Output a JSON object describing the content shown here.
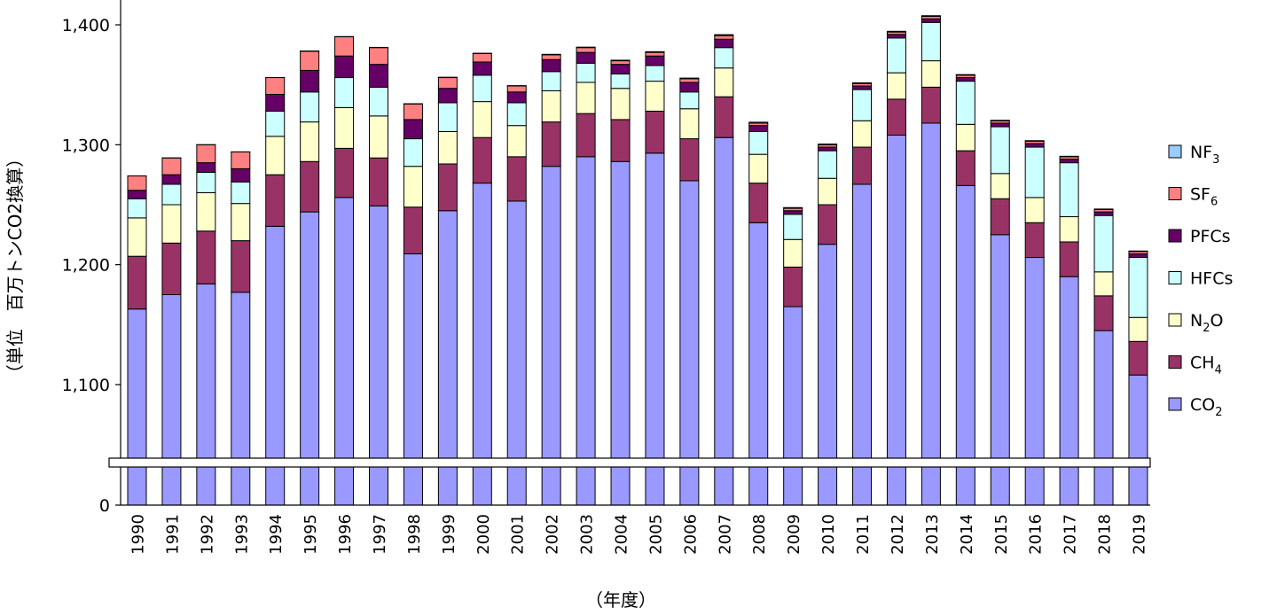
{
  "chart_data": {
    "type": "bar",
    "stacked": true,
    "broken_y_axis": true,
    "ylabel": "（単位　百万トンCO2換算）",
    "xlabel": "（年度）",
    "y_ticks": [
      "0",
      "1,100",
      "1,200",
      "1,300",
      "1,400"
    ],
    "ylim_upper": [
      1040,
      1400
    ],
    "grid": false,
    "legend_position": "right",
    "categories": [
      "1990",
      "1991",
      "1992",
      "1993",
      "1994",
      "1995",
      "1996",
      "1997",
      "1998",
      "1999",
      "2000",
      "2001",
      "2002",
      "2003",
      "2004",
      "2005",
      "2006",
      "2007",
      "2008",
      "2009",
      "2010",
      "2011",
      "2012",
      "2013",
      "2014",
      "2015",
      "2016",
      "2017",
      "2018",
      "2019"
    ],
    "series": [
      {
        "name": "CO2",
        "label_main": "CO",
        "label_sub": "2",
        "color": "#9999ff",
        "values": [
          1163,
          1175,
          1184,
          1177,
          1232,
          1244,
          1256,
          1249,
          1209,
          1245,
          1268,
          1253,
          1282,
          1290,
          1286,
          1293,
          1270,
          1306,
          1235,
          1165,
          1217,
          1267,
          1308,
          1318,
          1266,
          1225,
          1206,
          1190,
          1145,
          1108
        ]
      },
      {
        "name": "CH4",
        "label_main": "CH",
        "label_sub": "4",
        "color": "#993366",
        "values": [
          44,
          43,
          44,
          43,
          43,
          42,
          41,
          40,
          39,
          39,
          38,
          37,
          37,
          36,
          35,
          35,
          35,
          34,
          33,
          33,
          33,
          31,
          30,
          30,
          29,
          30,
          29,
          29,
          29,
          28
        ]
      },
      {
        "name": "N2O",
        "label_main": "N",
        "label_sub": "2",
        "label_tail": "O",
        "color": "#ffffcc",
        "values": [
          32,
          32,
          32,
          31,
          32,
          33,
          34,
          35,
          34,
          27,
          30,
          26,
          26,
          26,
          26,
          25,
          25,
          24,
          24,
          23,
          22,
          22,
          22,
          22,
          22,
          21,
          21,
          21,
          20,
          20
        ]
      },
      {
        "name": "HFCs",
        "label_main": "HFCs",
        "color": "#ccffff",
        "values": [
          16,
          17,
          17,
          18,
          21,
          25,
          25,
          24,
          23,
          24,
          22,
          19,
          16,
          16,
          12,
          13,
          14,
          17,
          19,
          21,
          23,
          26,
          29,
          32,
          36,
          39,
          42,
          45,
          47,
          50
        ]
      },
      {
        "name": "PFCs",
        "label_main": "PFCs",
        "color": "#660066",
        "values": [
          7,
          8,
          8,
          11,
          14,
          18,
          18,
          19,
          16,
          12,
          11,
          9,
          10,
          9,
          8,
          8,
          8,
          7,
          5,
          3,
          3,
          3,
          3,
          3,
          3,
          3,
          3,
          3,
          3,
          3
        ]
      },
      {
        "name": "SF6",
        "label_main": "SF",
        "label_sub": "6",
        "color": "#ff8080",
        "values": [
          12,
          14,
          15,
          14,
          14,
          16,
          16,
          14,
          13,
          9,
          7,
          5,
          4,
          4,
          3,
          3,
          3,
          3,
          2,
          2,
          2,
          2,
          2,
          2,
          2,
          2,
          2,
          2,
          2,
          2
        ]
      },
      {
        "name": "NF3",
        "label_main": "NF",
        "label_sub": "3",
        "color": "#99ccff",
        "values": [
          0.03,
          0.04,
          0.05,
          0.06,
          0.07,
          0.2,
          0.2,
          0.2,
          0.2,
          0.3,
          0.3,
          0.3,
          0.4,
          0.4,
          0.5,
          0.6,
          0.6,
          0.8,
          0.8,
          0.6,
          0.6,
          0.6,
          0.6,
          0.6,
          0.5,
          0.4,
          0.4,
          0.4,
          0.4,
          0.4
        ]
      }
    ]
  }
}
